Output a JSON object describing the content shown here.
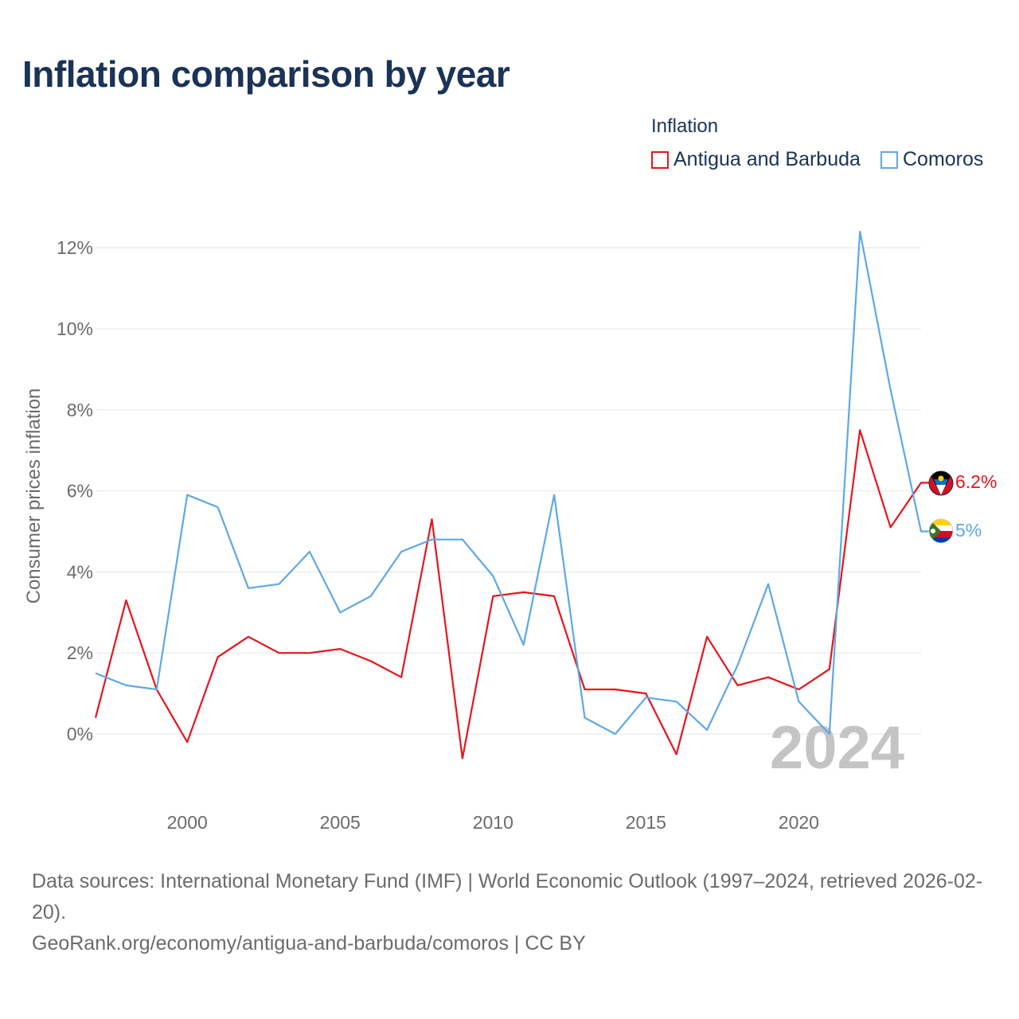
{
  "title": "Inflation comparison by year",
  "legend": {
    "title": "Inflation",
    "items": [
      {
        "label": "Antigua and Barbuda",
        "color": "#e8141c"
      },
      {
        "label": "Comoros",
        "color": "#5fa8e6"
      }
    ]
  },
  "footer": {
    "source": "Data sources: International Monetary Fund (IMF) | World Economic Outlook (1997–2024, retrieved 2026-02-20).",
    "link": "GeoRank.org/economy/antigua-and-barbuda/comoros | CC BY"
  },
  "chart_data": {
    "type": "line",
    "ylabel": "Consumer prices inflation",
    "xlabel": "",
    "year_watermark": "2024",
    "x": [
      1997,
      1998,
      1999,
      2000,
      2001,
      2002,
      2003,
      2004,
      2005,
      2006,
      2007,
      2008,
      2009,
      2010,
      2011,
      2012,
      2013,
      2014,
      2015,
      2016,
      2017,
      2018,
      2019,
      2020,
      2021,
      2022,
      2023,
      2024
    ],
    "xlim": [
      1997,
      2024
    ],
    "ylim": [
      -2,
      12.5
    ],
    "x_ticks": [
      2000,
      2005,
      2010,
      2015,
      2020
    ],
    "y_ticks": [
      0,
      2,
      4,
      6,
      8,
      10,
      12
    ],
    "y_tick_labels": [
      "0%",
      "2%",
      "4%",
      "6%",
      "8%",
      "10%",
      "12%"
    ],
    "series": [
      {
        "name": "Antigua and Barbuda",
        "color": "#e8141c",
        "end_label": "6.2%",
        "flag": "antigua-flag-icon",
        "values": [
          0.4,
          3.3,
          1.1,
          -0.2,
          1.9,
          2.4,
          2.0,
          2.0,
          2.1,
          1.8,
          1.4,
          5.3,
          -0.6,
          3.4,
          3.5,
          3.4,
          1.1,
          1.1,
          1.0,
          -0.5,
          2.4,
          1.2,
          1.4,
          1.1,
          1.6,
          7.5,
          5.1,
          6.2
        ]
      },
      {
        "name": "Comoros",
        "color": "#5fa8e6",
        "end_label": "5%",
        "flag": "comoros-flag-icon",
        "values": [
          1.5,
          1.2,
          1.1,
          5.9,
          5.6,
          3.6,
          3.7,
          4.5,
          3.0,
          3.4,
          4.5,
          4.8,
          4.8,
          3.9,
          2.2,
          5.9,
          0.4,
          0.0,
          0.9,
          0.8,
          0.1,
          1.7,
          3.7,
          0.8,
          0.0,
          12.4,
          8.5,
          5.0
        ]
      }
    ]
  }
}
